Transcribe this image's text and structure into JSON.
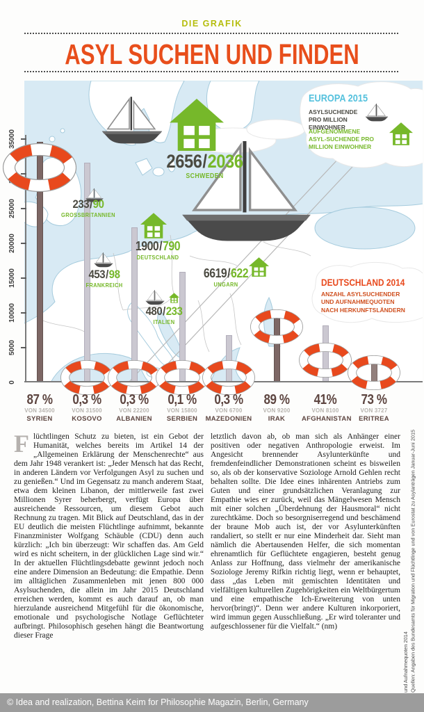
{
  "slash": "/",
  "header": {
    "kicker": "DIE GRAFIK",
    "title": "ASYL SUCHEN UND FINDEN"
  },
  "legend": {
    "title": "EUROPA 2015",
    "item_seekers": "ASYLSUCHENDE PRO MILLION EINWOHNER",
    "item_accepted": "AUFGENOMMENE ASYL-SUCHENDE PRO MILLION EINWOHNER"
  },
  "germany_box": {
    "title": "DEUTSCHLAND 2014",
    "subtitle": "ANZAHL ASYLSUCHENDER UND AUFNAHMEQUOTEN NACH HERKUNFTSLÄNDERN"
  },
  "axis": {
    "ticks": [
      "0",
      "5000",
      "10000",
      "15000",
      "20000",
      "25000",
      "30000",
      "35000"
    ]
  },
  "map_labels": [
    {
      "country": "SCHWEDEN",
      "seekers": "2656",
      "accepted": "2036"
    },
    {
      "country": "GROSSBRITANNIEN",
      "seekers": "233",
      "accepted": "90"
    },
    {
      "country": "DEUTSCHLAND",
      "seekers": "1900",
      "accepted": "790"
    },
    {
      "country": "FRANKREICH",
      "seekers": "453",
      "accepted": "98"
    },
    {
      "country": "ITALIEN",
      "seekers": "480",
      "accepted": "233"
    },
    {
      "country": "UNGARN",
      "seekers": "6619",
      "accepted": "622"
    }
  ],
  "countries_2014": [
    {
      "pct": "87 %",
      "von": "VON 34500",
      "name": "SYRIEN"
    },
    {
      "pct": "0,3 %",
      "von": "VON 31500",
      "name": "KOSOVO"
    },
    {
      "pct": "0,3 %",
      "von": "VON 22200",
      "name": "ALBANIEN"
    },
    {
      "pct": "0,1 %",
      "von": "VON 15800",
      "name": "SERBIEN"
    },
    {
      "pct": "0,3 %",
      "von": "VON 6700",
      "name": "MAZEDONIEN"
    },
    {
      "pct": "89 %",
      "von": "VON 9200",
      "name": "IRAK"
    },
    {
      "pct": "41%",
      "von": "VON 8100",
      "name": "AFGHANISTAN"
    },
    {
      "pct": "73 %",
      "von": "VON 3727",
      "name": "ERITREA"
    }
  ],
  "chart_data": {
    "type": "bar",
    "title": "Deutschland 2014: Anzahl Asylsuchender und Aufnahmequoten nach Herkunftsländern",
    "categories": [
      "Syrien",
      "Kosovo",
      "Albanien",
      "Serbien",
      "Mazedonien",
      "Irak",
      "Afghanistan",
      "Eritrea"
    ],
    "series": [
      {
        "name": "Asylsuchende 2014 (Anzahl)",
        "values": [
          34500,
          31500,
          22200,
          15800,
          6700,
          9200,
          8100,
          3727
        ]
      },
      {
        "name": "Aufnahmequote (%)",
        "values": [
          87,
          0.3,
          0.3,
          0.1,
          0.3,
          89,
          41,
          73
        ]
      }
    ],
    "ylabel": "Anzahl Asylsuchender",
    "ylim": [
      0,
      35000
    ],
    "grid": false,
    "europa_2015": {
      "unit": "pro Million Einwohner",
      "countries": [
        "Schweden",
        "Grossbritannien",
        "Deutschland",
        "Frankreich",
        "Italien",
        "Ungarn"
      ],
      "asylsuchende": [
        2656,
        233,
        1900,
        453,
        480,
        6619
      ],
      "aufgenommene": [
        2036,
        90,
        790,
        98,
        233,
        622
      ]
    }
  },
  "article": {
    "dropcap": "F",
    "left": "lüchtlingen Schutz zu bieten, ist ein Gebot der Humanität, welches bereits im Artikel 14 der „Allgemeinen Erklärung der Menschenrechte“ aus dem Jahr 1948 verankert ist: „Jeder Mensch hat das Recht, in anderen Ländern vor Verfolgungen Asyl zu suchen und zu genießen.“ Und im Gegensatz zu manch anderem Staat, etwa dem kleinen Libanon, der mittlerweile fast zwei Millionen Syrer beherbergt, verfügt Europa über ausreichende Ressourcen, um diesem Gebot auch Rechnung zu tragen. Mit Blick auf Deutschland, das in der EU deutlich die meisten Flüchtlinge aufnimmt, bekannte Finanzminister Wolfgang Schäuble (CDU) denn auch kürzlich: „Ich bin überzeugt: Wir schaffen das. Am Geld wird es nicht scheitern, in der glücklichen Lage sind wir.“ In der aktuellen Flüchtlingsdebatte gewinnt jedoch noch eine andere Dimension an Bedeutung: die Empathie. Denn im alltäglichen Zusammenleben mit jenen 800 000 Asylsuchenden, die allein im Jahr 2015 Deutschland erreichen werden, kommt es auch darauf an, ob man hierzulande ausreichend Mitgefühl für die ökonomische, emotionale und psychologische Notlage Geflüchteter aufbringt. Philosophisch gesehen hängt die Beantwortung dieser Frage",
    "right": "letztlich davon ab, ob man sich als Anhänger einer positiven oder negativen Anthropologie erweist. Im Angesicht brennender Asylunterkünfte und fremdenfeindlicher Demonstrationen scheint es bisweilen so, als ob der konservative Soziologe Arnold Gehlen recht behalten sollte. Die Idee eines inhärenten Antriebs zum Guten und einer grundsätzlichen Veranlagung zur Empathie wies er zurück, weil das Mängelwesen Mensch mit einer solchen „Überdehnung der Hausmoral“ nicht zurechtkäme. Doch so besorgniserregend und beschämend der braune Mob auch ist, der vor Asylunterkünften randaliert, so stellt er nur eine Minderheit dar. Sieht man nämlich die Abertausenden Helfer, die sich momentan ehrenamtlich für Geflüchtete engagieren, besteht genug Anlass zur Hoffnung, dass vielmehr der amerikanische Soziologe Jeremy Rifkin richtig liegt, wenn er behauptet, dass „das Leben mit gemischten Identitäten und vielfältigen kulturellen Zugehörigkeiten ein Weltbürgertum und eine empathische Ich-Erweiterung von unten hervor(bringt)“. Denn wer andere Kulturen inkorporiert, wird immun gegen Ausschließung. „Er wird toleranter und aufgeschlossener für die Vielfalt.“ (nm)"
  },
  "source_note": "Quellen: Angaben des Bundesamts für Migration und Flüchtlinge und von Eurostat zu Asylanträgen Januar-Juni 2015 und Aufnahmequoten 2014",
  "footer": {
    "credit": "© Idea and realization, Bettina Keim for Philosophie Magazin, Berlin, Germany"
  }
}
